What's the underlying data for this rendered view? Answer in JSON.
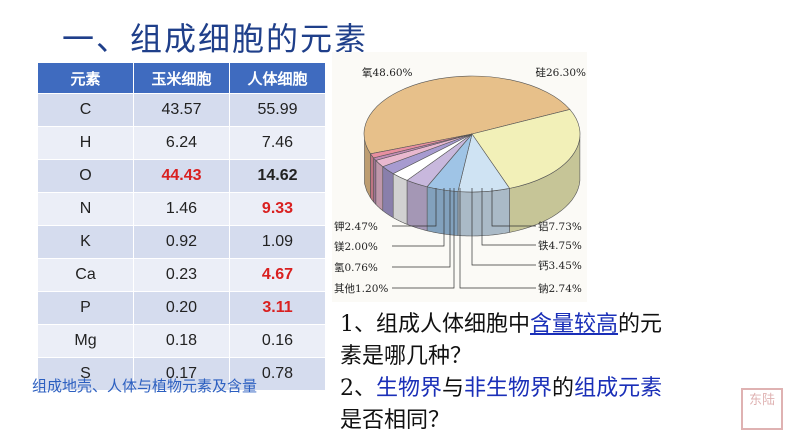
{
  "title": "一、组成细胞的元素",
  "table": {
    "headers": [
      "元素",
      "玉米细胞",
      "人体细胞"
    ],
    "rows": [
      {
        "element": "C",
        "corn": "43.57",
        "human": "55.99"
      },
      {
        "element": "H",
        "corn": "6.24",
        "human": "7.46"
      },
      {
        "element": "O",
        "corn": "44.43",
        "human": "14.62"
      },
      {
        "element": "N",
        "corn": "1.46",
        "human": "9.33"
      },
      {
        "element": "K",
        "corn": "0.92",
        "human": "1.09"
      },
      {
        "element": "Ca",
        "corn": "0.23",
        "human": "4.67"
      },
      {
        "element": "P",
        "corn": "0.20",
        "human": "3.11"
      },
      {
        "element": "Mg",
        "corn": "0.18",
        "human": "0.16"
      },
      {
        "element": "S",
        "corn": "0.17",
        "human": "0.78"
      }
    ],
    "highlight_color": "#d92020"
  },
  "pie_chart": {
    "type": "pie",
    "slices": [
      {
        "label": "氧48.60%",
        "value": 48.6,
        "color": "#e7c08a"
      },
      {
        "label": "硅26.30%",
        "value": 26.3,
        "color": "#f2f0b8"
      },
      {
        "label": "铝7.73%",
        "value": 7.73,
        "color": "#cfe3f3"
      },
      {
        "label": "铁4.75%",
        "value": 4.75,
        "color": "#9fc4e6"
      },
      {
        "label": "钙3.45%",
        "value": 3.45,
        "color": "#c8b8dd"
      },
      {
        "label": "钠2.74%",
        "value": 2.74,
        "color": "#ffffff"
      },
      {
        "label": "钾2.47%",
        "value": 2.47,
        "color": "#a79bd0"
      },
      {
        "label": "镁2.00%",
        "value": 2.0,
        "color": "#e9b8cf"
      },
      {
        "label": "氢0.76%",
        "value": 0.76,
        "color": "#c28bb5"
      },
      {
        "label": "其他1.20%",
        "value": 1.2,
        "color": "#e88fa0"
      }
    ]
  },
  "caption": "组成地壳、人体与植物元素及含量",
  "questions": {
    "q1_prefix": "1、组成人体细胞中",
    "q1_highlight": "含量较高",
    "q1_suffix": "的元",
    "q1_line2": "素是哪几种？",
    "q2_prefix": "2、",
    "q2_hl1": "生物界",
    "q2_mid": "与",
    "q2_hl2": "非生物界",
    "q2_mid2": "的",
    "q2_hl3": "组成元素",
    "q2_line2": "是否相同？"
  },
  "stamp_text": "东陆"
}
